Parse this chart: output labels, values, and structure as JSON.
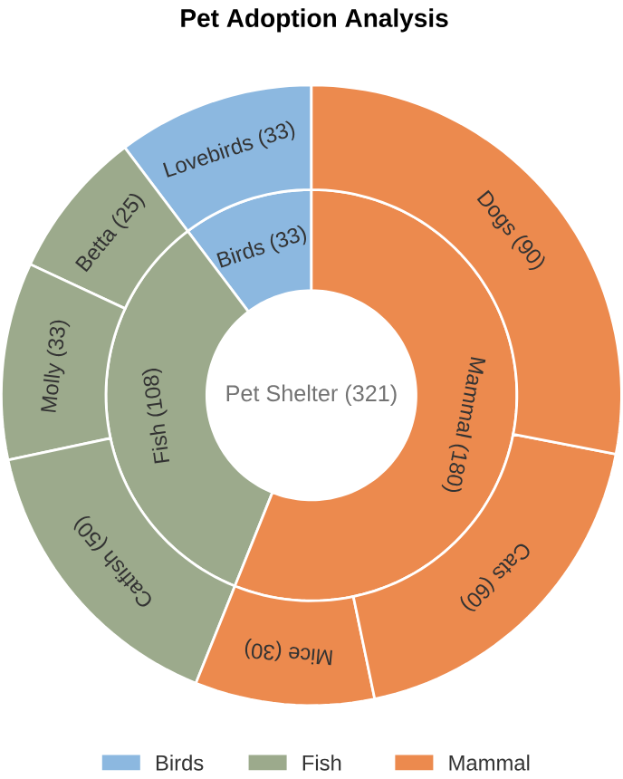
{
  "chart_data": [
    {
      "type": "donut",
      "title": "Pet Adoption Analysis",
      "categories": [
        "Birds",
        "Fish",
        "Mammal"
      ],
      "values": [
        33,
        108,
        180
      ],
      "value_labels": [
        "(33)",
        "(108)",
        "(180)"
      ],
      "colors": [
        "#8cb8e0",
        "#9caa8c",
        "#ec8a4e"
      ],
      "legend": "bottom",
      "annotations": [
        "Pet Shelter (321)"
      ]
    },
    {
      "type": "donut",
      "categories": [
        "Lovebirds",
        "Betta",
        "Molly",
        "Catfish",
        "Mice",
        "Cats",
        "Dogs"
      ],
      "values": [
        33,
        25,
        33,
        50,
        30,
        60,
        90
      ],
      "value_labels": [
        "(33)",
        "(25)",
        "(33)",
        "(50)",
        "(30)",
        "(60)",
        "(90)"
      ],
      "colors": [
        "#8cb8e0",
        "#9caa8c",
        "#9caa8c",
        "#9caa8c",
        "#ec8a4e",
        "#ec8a4e",
        "#ec8a4e"
      ]
    }
  ]
}
